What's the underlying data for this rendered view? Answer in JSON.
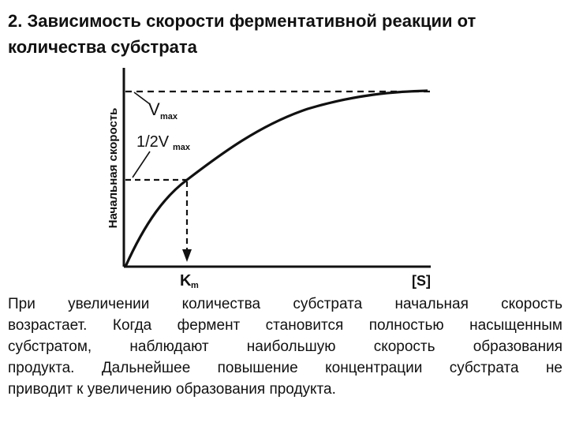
{
  "title": {
    "line1": "2. Зависимость скорости ферментативной реакции от",
    "line2": "количества субстрата"
  },
  "figure": {
    "y_axis_label": "Начальная скорость",
    "x_axis_label": "[S]",
    "vmax_label": "Vmax",
    "half_vmax_label": "1/2Vmax",
    "km_label": "Km"
  },
  "description": {
    "line1": "При увеличении количества субстрата начальная скорость",
    "line2": "возрастает. Когда фермент становится полностью насыщенным",
    "line3": "субстратом, наблюдают наибольшую скорость образования",
    "line4": "продукта. Дальнейшее повышение концентрации субстрата не",
    "line5": "приводит к увеличению образования продукта."
  }
}
